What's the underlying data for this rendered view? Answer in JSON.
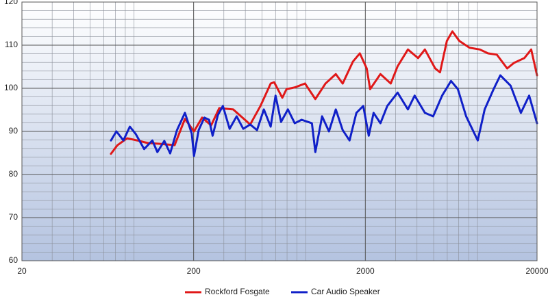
{
  "chart_data": {
    "type": "line",
    "xscale": "log",
    "grid": true,
    "xlim": [
      20,
      20000
    ],
    "ylim": [
      60,
      120
    ],
    "xticks": [
      20,
      200,
      2000,
      20000
    ],
    "yticks": [
      60,
      70,
      80,
      90,
      100,
      110,
      120
    ],
    "xminorticks": [
      30,
      40,
      50,
      60,
      70,
      80,
      90,
      300,
      400,
      500,
      600,
      700,
      800,
      900,
      3000,
      4000,
      5000,
      6000,
      7000,
      8000,
      9000
    ],
    "yminorticks": [
      62,
      64,
      66,
      68,
      72,
      74,
      76,
      78,
      82,
      84,
      86,
      88,
      92,
      94,
      96,
      98,
      102,
      104,
      106,
      108,
      112,
      114,
      116,
      118
    ],
    "legend": "bottom",
    "series": [
      {
        "name": "Rockford Fosgate",
        "color": "#e01818",
        "x": [
          66,
          72,
          82,
          94,
          108,
          129,
          155,
          178,
          201,
          224,
          253,
          282,
          340,
          427,
          490,
          562,
          589,
          657,
          695,
          776,
          891,
          1023,
          1172,
          1346,
          1476,
          1694,
          1858,
          2037,
          2133,
          2449,
          2812,
          3083,
          3540,
          4056,
          4446,
          5105,
          5445,
          5970,
          6427,
          7047,
          8092,
          9290,
          10376,
          11668,
          13398,
          14690,
          16866,
          18494,
          20000
        ],
        "values": [
          84.8,
          86.8,
          88.4,
          87.9,
          87.3,
          87.1,
          86.8,
          92.9,
          90.0,
          93.2,
          91.4,
          95.4,
          95.1,
          91.6,
          95.9,
          101.1,
          101.4,
          97.8,
          99.8,
          100.2,
          101.1,
          97.5,
          101.1,
          103.3,
          101.1,
          106.2,
          108.1,
          104.6,
          99.8,
          103.3,
          101.1,
          105.1,
          109.0,
          107.0,
          109.0,
          104.6,
          103.7,
          111.0,
          113.2,
          111.0,
          109.4,
          109.0,
          108.1,
          107.8,
          104.6,
          105.9,
          107.0,
          109.0,
          103.0
        ]
      },
      {
        "name": "Car Audio Speaker",
        "color": "#1020c8",
        "x": [
          66,
          71,
          78,
          85,
          92,
          103,
          115,
          123,
          135,
          146,
          160,
          178,
          195,
          201,
          214,
          231,
          246,
          258,
          277,
          296,
          324,
          356,
          389,
          427,
          468,
          513,
          562,
          600,
          646,
          708,
          776,
          851,
          977,
          1023,
          1120,
          1228,
          1346,
          1476,
          1618,
          1774,
          1945,
          2094,
          2234,
          2449,
          2685,
          3083,
          3540,
          3875,
          4446,
          4966,
          5600,
          6310,
          6918,
          7727,
          9032,
          9909,
          11170,
          12220,
          14030,
          16110,
          17990,
          20000
        ],
        "values": [
          87.9,
          90.0,
          87.9,
          91.1,
          89.4,
          85.9,
          87.9,
          85.2,
          87.8,
          84.9,
          90.3,
          94.3,
          89.5,
          84.3,
          90.3,
          93.2,
          92.7,
          89.0,
          93.8,
          95.9,
          90.6,
          93.5,
          90.6,
          91.6,
          90.3,
          95.1,
          91.1,
          98.3,
          92.2,
          95.1,
          91.9,
          92.7,
          91.9,
          85.2,
          93.5,
          90.0,
          95.1,
          90.3,
          87.9,
          94.3,
          95.9,
          89.0,
          94.3,
          91.9,
          95.9,
          99.0,
          95.1,
          98.3,
          94.3,
          93.5,
          98.3,
          101.7,
          99.8,
          93.5,
          87.9,
          95.1,
          99.8,
          103.0,
          100.6,
          94.3,
          98.3,
          91.9
        ]
      }
    ]
  }
}
